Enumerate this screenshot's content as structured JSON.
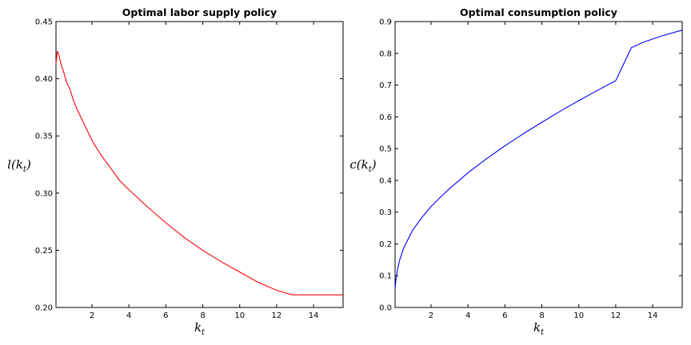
{
  "chart_data": [
    {
      "type": "line",
      "title": "Optimal labor supply policy",
      "xlabel": "k",
      "xlabel_sub": "t",
      "ylabel_fn": "l(k",
      "ylabel_sub": "t",
      "ylabel_close": ")",
      "xlim": [
        0.05,
        15.6
      ],
      "ylim": [
        0.2,
        0.45
      ],
      "xticks": [
        2,
        4,
        6,
        8,
        10,
        12,
        14
      ],
      "yticks": [
        0.2,
        0.25,
        0.3,
        0.35,
        0.4,
        0.45
      ],
      "ytick_labels": [
        "0.20",
        "0.25",
        "0.30",
        "0.35",
        "0.40",
        "0.45"
      ],
      "grid": false,
      "series": [
        {
          "color": "#ff0000",
          "x": [
            0.05,
            0.12,
            0.2,
            0.3,
            0.4,
            0.5,
            0.6,
            0.8,
            1.0,
            1.2,
            1.5,
            2.0,
            2.5,
            3.0,
            3.5,
            4.0,
            5.0,
            6.0,
            7.0,
            8.0,
            9.0,
            10.0,
            11.0,
            12.0,
            12.85,
            13.5,
            14.5,
            15.6
          ],
          "y": [
            0.413,
            0.424,
            0.421,
            0.414,
            0.409,
            0.404,
            0.398,
            0.391,
            0.381,
            0.373,
            0.363,
            0.346,
            0.333,
            0.322,
            0.311,
            0.303,
            0.288,
            0.274,
            0.261,
            0.25,
            0.24,
            0.231,
            0.222,
            0.215,
            0.211,
            0.211,
            0.211,
            0.211
          ]
        }
      ]
    },
    {
      "type": "line",
      "title": "Optimal consumption policy",
      "xlabel": "k",
      "xlabel_sub": "t",
      "ylabel_fn": "c(k",
      "ylabel_sub": "t",
      "ylabel_close": ")",
      "xlim": [
        0.05,
        15.6
      ],
      "ylim": [
        0.0,
        0.9
      ],
      "xticks": [
        2,
        4,
        6,
        8,
        10,
        12,
        14
      ],
      "yticks": [
        0.0,
        0.1,
        0.2,
        0.3,
        0.4,
        0.5,
        0.6,
        0.7,
        0.8,
        0.9
      ],
      "ytick_labels": [
        "0.0",
        "0.1",
        "0.2",
        "0.3",
        "0.4",
        "0.5",
        "0.6",
        "0.7",
        "0.8",
        "0.9"
      ],
      "grid": false,
      "series": [
        {
          "color": "#0000ff",
          "x": [
            0.05,
            0.1,
            0.2,
            0.3,
            0.5,
            0.75,
            1.0,
            1.5,
            2.0,
            2.5,
            3.0,
            4.0,
            5.0,
            6.0,
            7.0,
            8.0,
            9.0,
            10.0,
            11.0,
            12.0,
            12.85,
            13.5,
            14.5,
            15.6
          ],
          "y": [
            0.06,
            0.09,
            0.125,
            0.15,
            0.185,
            0.215,
            0.243,
            0.283,
            0.318,
            0.347,
            0.374,
            0.424,
            0.468,
            0.509,
            0.547,
            0.583,
            0.618,
            0.651,
            0.683,
            0.714,
            0.818,
            0.835,
            0.855,
            0.873
          ]
        }
      ]
    }
  ]
}
